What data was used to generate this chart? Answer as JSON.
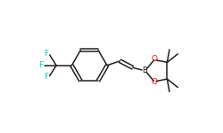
{
  "bg_color": "#ffffff",
  "bond_color": "#202020",
  "F_color": "#00cccc",
  "O_color": "#ee1100",
  "B_color": "#202020",
  "lw": 1.1,
  "figsize": [
    2.5,
    1.5
  ],
  "dpi": 100,
  "xlim": [
    0,
    10
  ],
  "ylim": [
    0,
    6
  ]
}
